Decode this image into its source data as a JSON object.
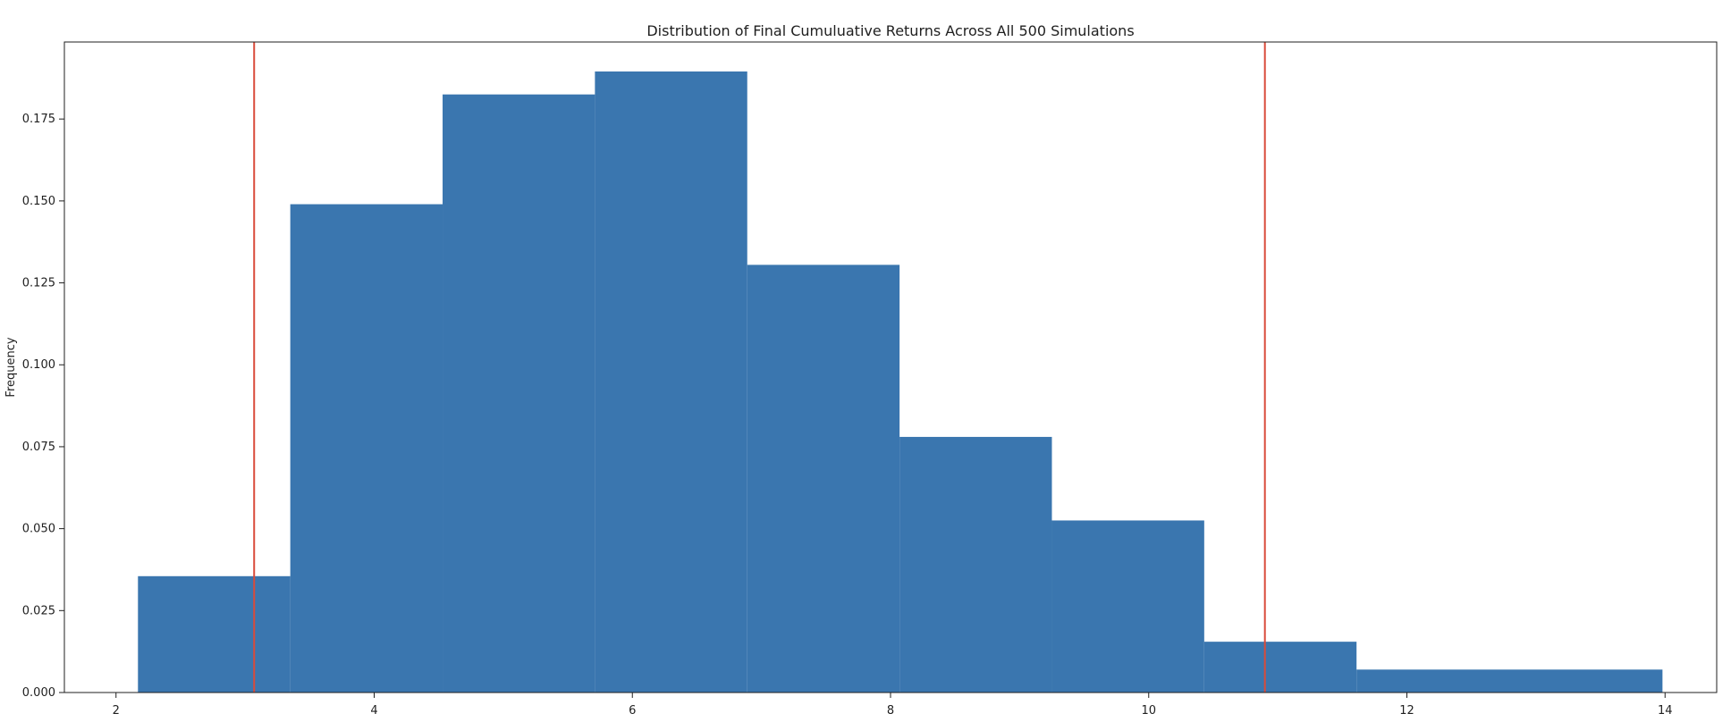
{
  "chart_data": {
    "type": "bar",
    "title": "Distribution of Final Cumuluative Returns Across All 500 Simulations",
    "xlabel": "",
    "ylabel": "Frequency",
    "xlim": [
      1.6,
      14.4
    ],
    "ylim": [
      0,
      0.1985
    ],
    "x_ticks": [
      2,
      4,
      6,
      8,
      10,
      12,
      14
    ],
    "x_tick_labels": [
      "2",
      "4",
      "6",
      "8",
      "10",
      "12",
      "14"
    ],
    "y_ticks": [
      0,
      0.025,
      0.05,
      0.075,
      0.1,
      0.125,
      0.15,
      0.175
    ],
    "y_tick_labels": [
      "0.000",
      "0.025",
      "0.050",
      "0.075",
      "0.100",
      "0.125",
      "0.150",
      "0.175"
    ],
    "bins": [
      {
        "x0": 2.17,
        "x1": 3.35,
        "value": 0.0355
      },
      {
        "x0": 3.35,
        "x1": 4.53,
        "value": 0.149
      },
      {
        "x0": 4.53,
        "x1": 5.71,
        "value": 0.1825
      },
      {
        "x0": 5.71,
        "x1": 6.89,
        "value": 0.1895
      },
      {
        "x0": 6.89,
        "x1": 8.07,
        "value": 0.1305
      },
      {
        "x0": 8.07,
        "x1": 9.25,
        "value": 0.078
      },
      {
        "x0": 9.25,
        "x1": 10.43,
        "value": 0.0525
      },
      {
        "x0": 10.43,
        "x1": 11.61,
        "value": 0.0155
      },
      {
        "x0": 11.61,
        "x1": 13.98,
        "value": 0.007
      }
    ],
    "vlines": [
      3.07,
      10.9
    ],
    "colors": {
      "bar": "#3a76af",
      "vline": "#d94b3a",
      "axis": "#1f1f1f"
    },
    "grid": false
  }
}
